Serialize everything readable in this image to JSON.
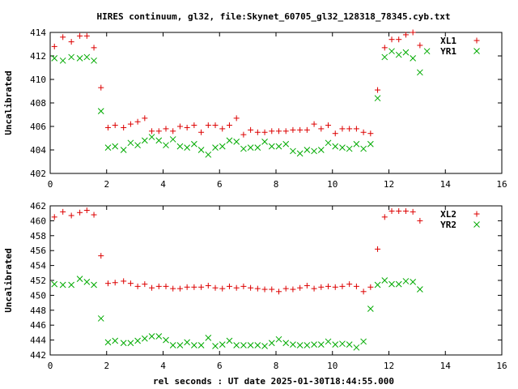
{
  "title": "HIRES continuum, gl32, file:Skynet_60705_gl32_128318_78345.cyb.txt",
  "xlabel": "rel seconds : UT date 2025-01-30T18:44:55.000",
  "colors": {
    "red": "#dd0000",
    "green": "#00aa00",
    "axis": "#000000"
  },
  "chart_data": [
    {
      "type": "scatter",
      "ylabel": "Uncalibrated",
      "xlim": [
        0,
        16
      ],
      "ylim": [
        402,
        414
      ],
      "xticks": [
        "0",
        "2",
        "4",
        "6",
        "8",
        "10",
        "12",
        "14",
        "16"
      ],
      "yticks": [
        "402",
        "404",
        "406",
        "408",
        "410",
        "412",
        "414"
      ],
      "legend_position": "top-right",
      "series": [
        {
          "name": "XL1",
          "marker": "plus",
          "color": "#dd0000",
          "points": [
            [
              0.15,
              412.8
            ],
            [
              0.45,
              413.6
            ],
            [
              0.75,
              413.2
            ],
            [
              1.05,
              413.7
            ],
            [
              1.3,
              413.7
            ],
            [
              1.55,
              412.7
            ],
            [
              1.8,
              409.3
            ],
            [
              2.05,
              405.9
            ],
            [
              2.3,
              406.1
            ],
            [
              2.6,
              405.9
            ],
            [
              2.85,
              406.2
            ],
            [
              3.1,
              406.4
            ],
            [
              3.35,
              406.7
            ],
            [
              3.6,
              405.6
            ],
            [
              3.85,
              405.6
            ],
            [
              4.1,
              405.8
            ],
            [
              4.35,
              405.6
            ],
            [
              4.6,
              406.0
            ],
            [
              4.85,
              405.9
            ],
            [
              5.1,
              406.1
            ],
            [
              5.35,
              405.5
            ],
            [
              5.6,
              406.1
            ],
            [
              5.85,
              406.1
            ],
            [
              6.1,
              405.8
            ],
            [
              6.35,
              406.1
            ],
            [
              6.6,
              406.7
            ],
            [
              6.85,
              405.3
            ],
            [
              7.1,
              405.7
            ],
            [
              7.35,
              405.5
            ],
            [
              7.6,
              405.5
            ],
            [
              7.85,
              405.6
            ],
            [
              8.1,
              405.6
            ],
            [
              8.35,
              405.6
            ],
            [
              8.6,
              405.7
            ],
            [
              8.85,
              405.7
            ],
            [
              9.1,
              405.7
            ],
            [
              9.35,
              406.2
            ],
            [
              9.6,
              405.8
            ],
            [
              9.85,
              406.1
            ],
            [
              10.1,
              405.4
            ],
            [
              10.35,
              405.8
            ],
            [
              10.6,
              405.8
            ],
            [
              10.85,
              405.8
            ],
            [
              11.1,
              405.5
            ],
            [
              11.35,
              405.4
            ],
            [
              11.6,
              409.1
            ],
            [
              11.85,
              412.7
            ],
            [
              12.1,
              413.4
            ],
            [
              12.35,
              413.4
            ],
            [
              12.6,
              413.8
            ],
            [
              12.85,
              414.0
            ],
            [
              13.1,
              412.9
            ]
          ]
        },
        {
          "name": "YR1",
          "marker": "cross",
          "color": "#00aa00",
          "points": [
            [
              0.15,
              411.8
            ],
            [
              0.45,
              411.6
            ],
            [
              0.75,
              411.9
            ],
            [
              1.05,
              411.8
            ],
            [
              1.3,
              411.9
            ],
            [
              1.55,
              411.6
            ],
            [
              1.8,
              407.3
            ],
            [
              2.05,
              404.2
            ],
            [
              2.3,
              404.3
            ],
            [
              2.6,
              404.0
            ],
            [
              2.85,
              404.6
            ],
            [
              3.1,
              404.4
            ],
            [
              3.35,
              404.8
            ],
            [
              3.6,
              405.1
            ],
            [
              3.85,
              404.8
            ],
            [
              4.1,
              404.4
            ],
            [
              4.35,
              404.9
            ],
            [
              4.6,
              404.3
            ],
            [
              4.85,
              404.2
            ],
            [
              5.1,
              404.5
            ],
            [
              5.35,
              404.0
            ],
            [
              5.6,
              403.6
            ],
            [
              5.85,
              404.2
            ],
            [
              6.1,
              404.3
            ],
            [
              6.35,
              404.8
            ],
            [
              6.6,
              404.7
            ],
            [
              6.85,
              404.1
            ],
            [
              7.1,
              404.2
            ],
            [
              7.35,
              404.2
            ],
            [
              7.6,
              404.7
            ],
            [
              7.85,
              404.3
            ],
            [
              8.1,
              404.3
            ],
            [
              8.35,
              404.5
            ],
            [
              8.6,
              403.9
            ],
            [
              8.85,
              403.7
            ],
            [
              9.1,
              404.0
            ],
            [
              9.35,
              403.9
            ],
            [
              9.6,
              404.0
            ],
            [
              9.85,
              404.6
            ],
            [
              10.1,
              404.3
            ],
            [
              10.35,
              404.2
            ],
            [
              10.6,
              404.1
            ],
            [
              10.85,
              404.5
            ],
            [
              11.1,
              404.1
            ],
            [
              11.35,
              404.5
            ],
            [
              11.6,
              408.4
            ],
            [
              11.85,
              411.9
            ],
            [
              12.1,
              412.4
            ],
            [
              12.35,
              412.1
            ],
            [
              12.6,
              412.3
            ],
            [
              12.85,
              411.8
            ],
            [
              13.1,
              410.6
            ],
            [
              13.35,
              412.4
            ]
          ]
        }
      ]
    },
    {
      "type": "scatter",
      "ylabel": "Uncalibrated",
      "xlim": [
        0,
        16
      ],
      "ylim": [
        442,
        462
      ],
      "xticks": [
        "0",
        "2",
        "4",
        "6",
        "8",
        "10",
        "12",
        "14",
        "16"
      ],
      "yticks": [
        "442",
        "444",
        "446",
        "448",
        "450",
        "452",
        "454",
        "456",
        "458",
        "460",
        "462"
      ],
      "legend_position": "top-right",
      "series": [
        {
          "name": "XL2",
          "marker": "plus",
          "color": "#dd0000",
          "points": [
            [
              0.15,
              460.5
            ],
            [
              0.45,
              461.2
            ],
            [
              0.75,
              460.7
            ],
            [
              1.05,
              461.1
            ],
            [
              1.3,
              461.4
            ],
            [
              1.55,
              460.8
            ],
            [
              1.8,
              455.3
            ],
            [
              2.05,
              451.6
            ],
            [
              2.3,
              451.7
            ],
            [
              2.6,
              451.9
            ],
            [
              2.85,
              451.6
            ],
            [
              3.1,
              451.2
            ],
            [
              3.35,
              451.5
            ],
            [
              3.6,
              451.0
            ],
            [
              3.85,
              451.2
            ],
            [
              4.1,
              451.2
            ],
            [
              4.35,
              450.9
            ],
            [
              4.6,
              450.9
            ],
            [
              4.85,
              451.1
            ],
            [
              5.1,
              451.1
            ],
            [
              5.35,
              451.1
            ],
            [
              5.6,
              451.3
            ],
            [
              5.85,
              451.0
            ],
            [
              6.1,
              450.9
            ],
            [
              6.35,
              451.2
            ],
            [
              6.6,
              451.0
            ],
            [
              6.85,
              451.2
            ],
            [
              7.1,
              451.0
            ],
            [
              7.35,
              450.9
            ],
            [
              7.6,
              450.8
            ],
            [
              7.85,
              450.8
            ],
            [
              8.1,
              450.5
            ],
            [
              8.35,
              450.9
            ],
            [
              8.6,
              450.8
            ],
            [
              8.85,
              451.0
            ],
            [
              9.1,
              451.3
            ],
            [
              9.35,
              450.9
            ],
            [
              9.6,
              451.1
            ],
            [
              9.85,
              451.2
            ],
            [
              10.1,
              451.1
            ],
            [
              10.35,
              451.2
            ],
            [
              10.6,
              451.5
            ],
            [
              10.85,
              451.2
            ],
            [
              11.1,
              450.5
            ],
            [
              11.35,
              451.1
            ],
            [
              11.6,
              456.2
            ],
            [
              11.85,
              460.5
            ],
            [
              12.1,
              461.3
            ],
            [
              12.35,
              461.3
            ],
            [
              12.6,
              461.3
            ],
            [
              12.85,
              461.2
            ],
            [
              13.1,
              460.0
            ]
          ]
        },
        {
          "name": "YR2",
          "marker": "cross",
          "color": "#00aa00",
          "points": [
            [
              0.15,
              451.5
            ],
            [
              0.45,
              451.4
            ],
            [
              0.75,
              451.4
            ],
            [
              1.05,
              452.2
            ],
            [
              1.3,
              451.8
            ],
            [
              1.55,
              451.4
            ],
            [
              1.8,
              446.9
            ],
            [
              2.05,
              443.7
            ],
            [
              2.3,
              443.9
            ],
            [
              2.6,
              443.6
            ],
            [
              2.85,
              443.6
            ],
            [
              3.1,
              443.9
            ],
            [
              3.35,
              444.2
            ],
            [
              3.6,
              444.5
            ],
            [
              3.85,
              444.5
            ],
            [
              4.1,
              444.0
            ],
            [
              4.35,
              443.3
            ],
            [
              4.6,
              443.3
            ],
            [
              4.85,
              443.7
            ],
            [
              5.1,
              443.3
            ],
            [
              5.35,
              443.3
            ],
            [
              5.6,
              444.3
            ],
            [
              5.85,
              443.2
            ],
            [
              6.1,
              443.4
            ],
            [
              6.35,
              443.9
            ],
            [
              6.6,
              443.3
            ],
            [
              6.85,
              443.3
            ],
            [
              7.1,
              443.3
            ],
            [
              7.35,
              443.3
            ],
            [
              7.6,
              443.2
            ],
            [
              7.85,
              443.6
            ],
            [
              8.1,
              444.1
            ],
            [
              8.35,
              443.6
            ],
            [
              8.6,
              443.4
            ],
            [
              8.85,
              443.3
            ],
            [
              9.1,
              443.3
            ],
            [
              9.35,
              443.4
            ],
            [
              9.6,
              443.4
            ],
            [
              9.85,
              443.8
            ],
            [
              10.1,
              443.4
            ],
            [
              10.35,
              443.5
            ],
            [
              10.6,
              443.4
            ],
            [
              10.85,
              443.0
            ],
            [
              11.1,
              443.8
            ],
            [
              11.35,
              448.2
            ],
            [
              11.6,
              451.4
            ],
            [
              11.85,
              452.0
            ],
            [
              12.1,
              451.5
            ],
            [
              12.35,
              451.5
            ],
            [
              12.6,
              451.9
            ],
            [
              12.85,
              451.8
            ],
            [
              13.1,
              450.8
            ]
          ]
        }
      ]
    }
  ]
}
